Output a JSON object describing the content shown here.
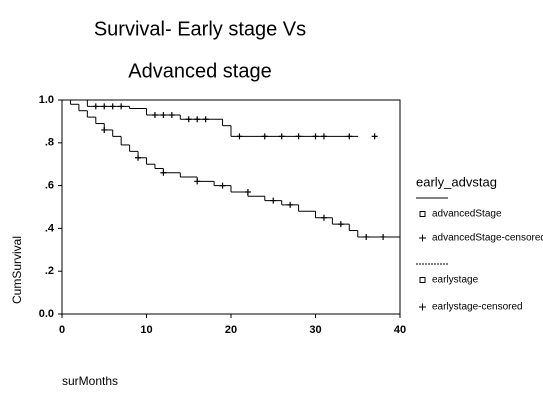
{
  "chart_data": {
    "type": "survival",
    "title": [
      "Survival- Early stage  Vs",
      "Advanced stage"
    ],
    "x_label": "surMonths",
    "y_label": "CumSurvival",
    "legend_title": "early_advstag",
    "xlim": [
      0,
      40
    ],
    "ylim": [
      0,
      1
    ],
    "xticks": [
      0,
      10,
      20,
      30,
      40
    ],
    "yticks": [
      {
        "value": 0,
        "label": "0.0"
      },
      {
        "value": 0.2,
        "label": ".2"
      },
      {
        "value": 0.4,
        "label": ".4"
      },
      {
        "value": 0.6,
        "label": ".6"
      },
      {
        "value": 0.8,
        "label": ".8"
      },
      {
        "value": 1,
        "label": "1.0"
      }
    ],
    "series": [
      {
        "name": "advancedStage",
        "style": "step",
        "color": "#000000",
        "x": [
          0,
          3,
          8,
          10,
          14,
          19,
          20,
          35
        ],
        "values": [
          1,
          0.97,
          0.96,
          0.93,
          0.91,
          0.88,
          0.83,
          0.83
        ]
      },
      {
        "name": "advancedStage-censored",
        "style": "censored",
        "color": "#000000",
        "x": [
          4,
          5,
          6,
          7,
          11,
          12,
          13,
          15,
          16,
          17,
          21,
          24,
          26,
          28,
          30,
          31,
          34,
          37
        ],
        "values": [
          0.97,
          0.97,
          0.97,
          0.97,
          0.93,
          0.93,
          0.93,
          0.91,
          0.91,
          0.91,
          0.83,
          0.83,
          0.83,
          0.83,
          0.83,
          0.83,
          0.83,
          0.83
        ]
      },
      {
        "name": "earlystage",
        "style": "step",
        "color": "#000000",
        "x": [
          0,
          1,
          2,
          3,
          4,
          5,
          6,
          7,
          8,
          9,
          10,
          11,
          12,
          14,
          16,
          18,
          20,
          22,
          24,
          26,
          28,
          30,
          32,
          34,
          35,
          40
        ],
        "values": [
          1,
          0.98,
          0.95,
          0.92,
          0.89,
          0.86,
          0.83,
          0.79,
          0.76,
          0.73,
          0.7,
          0.68,
          0.66,
          0.64,
          0.62,
          0.6,
          0.57,
          0.55,
          0.53,
          0.51,
          0.48,
          0.45,
          0.42,
          0.39,
          0.36,
          0.36
        ]
      },
      {
        "name": "earlystage-censored",
        "style": "censored",
        "color": "#000000",
        "x": [
          5,
          9,
          12,
          16,
          19,
          22,
          25,
          27,
          31,
          33,
          36,
          38
        ],
        "values": [
          0.86,
          0.73,
          0.66,
          0.62,
          0.6,
          0.57,
          0.53,
          0.51,
          0.45,
          0.42,
          0.36,
          0.36
        ]
      }
    ]
  }
}
